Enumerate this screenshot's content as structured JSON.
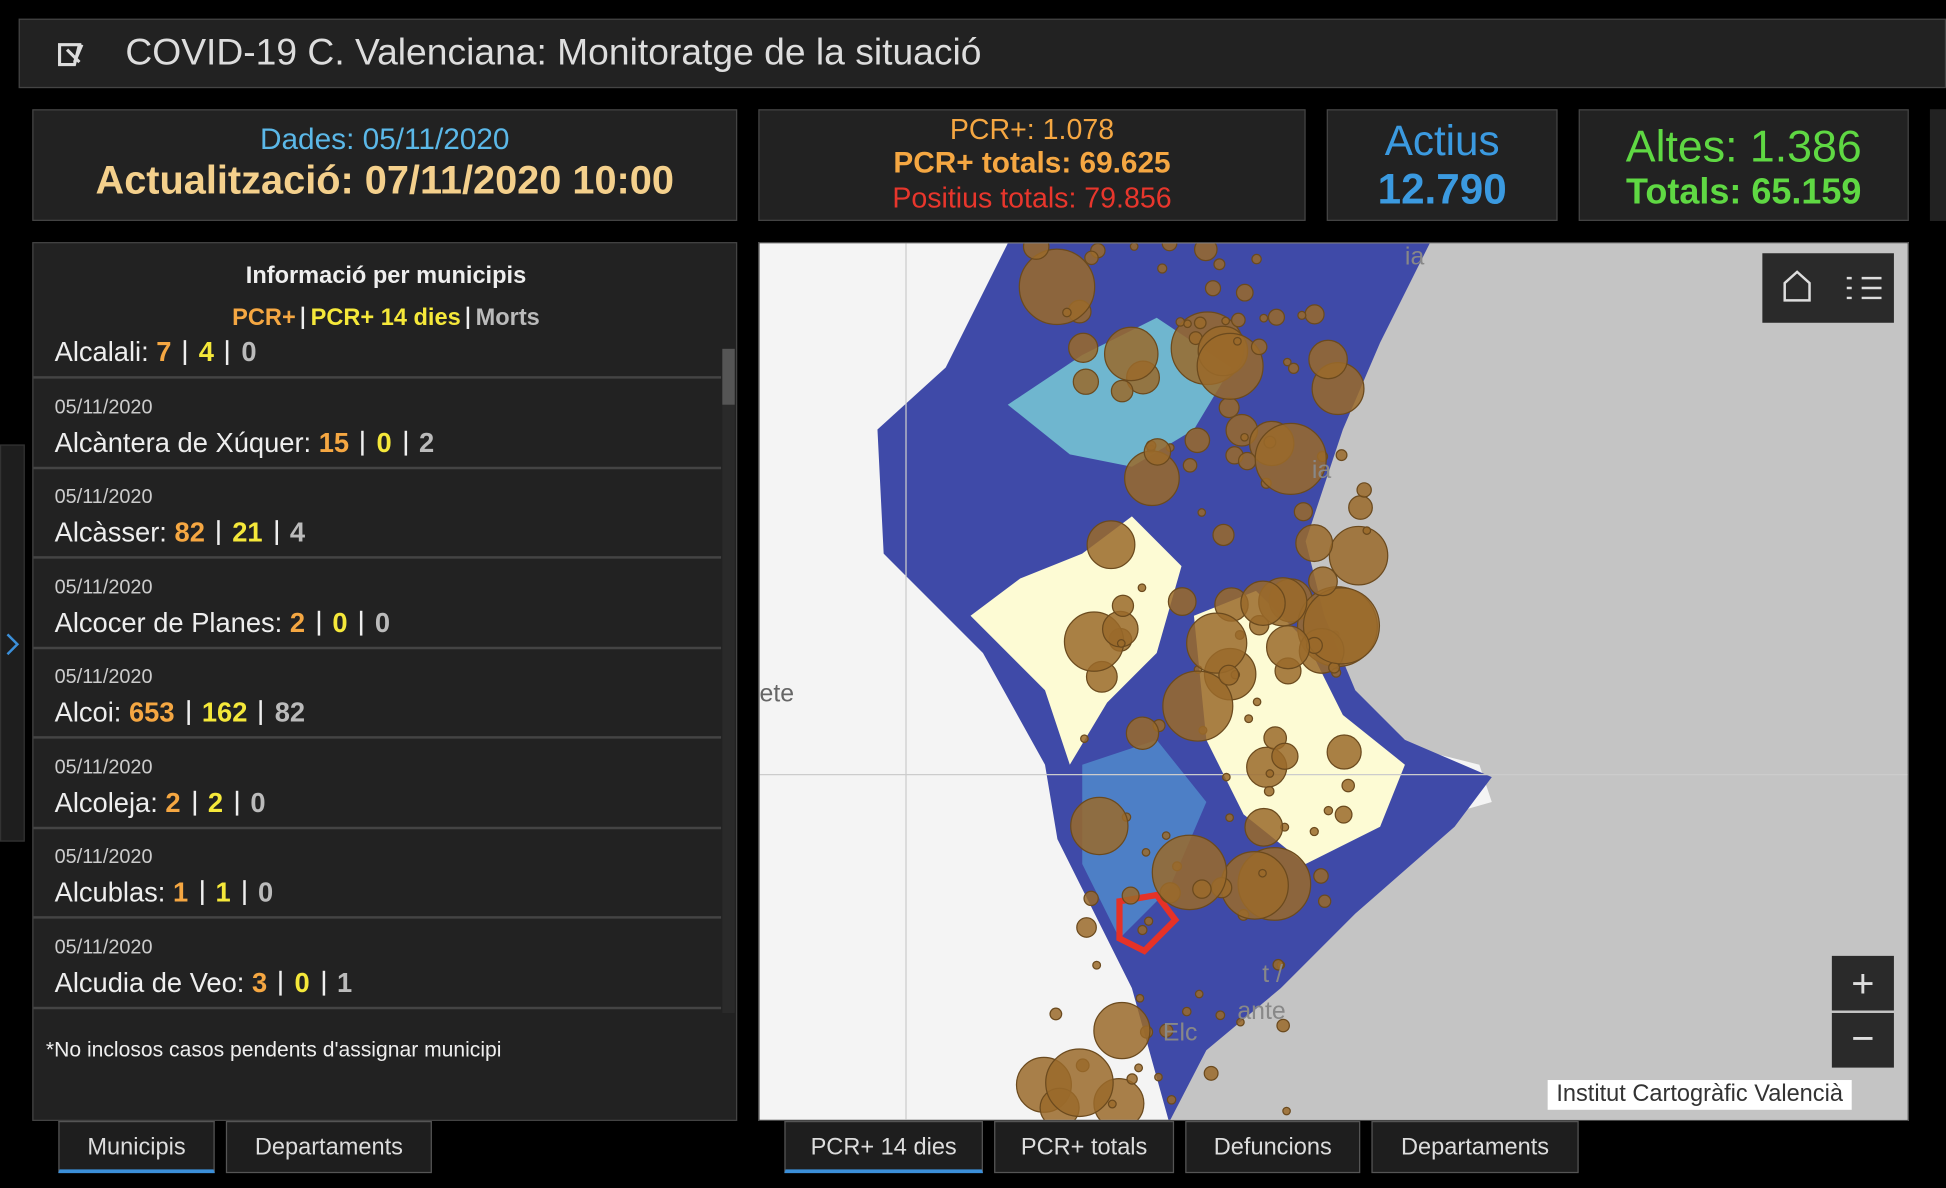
{
  "header": {
    "title": "COVID-19 C. Valenciana: Monitoratge de la situació"
  },
  "cards": {
    "data_date": "Dades: 05/11/2020",
    "update": "Actualització: 07/11/2020 10:00",
    "pcr": "PCR+: 1.078",
    "pcr_total": "PCR+ totals: 69.625",
    "positive_total": "Positius totals: 79.856",
    "active_label": "Actius",
    "active_value": "12.790",
    "discharges": "Altes: 1.386",
    "discharges_total": "Totals: 65.159"
  },
  "panel": {
    "title": "Informació per municipis",
    "legend": [
      "PCR+",
      "PCR+ 14 dies",
      "Morts"
    ],
    "items": [
      {
        "date": null,
        "name": "Alcalali:",
        "pcr": "7",
        "pcr14": "4",
        "deaths": "0"
      },
      {
        "date": "05/11/2020",
        "name": "Alcàntera de Xúquer:",
        "pcr": "15",
        "pcr14": "0",
        "deaths": "2"
      },
      {
        "date": "05/11/2020",
        "name": "Alcàsser:",
        "pcr": "82",
        "pcr14": "21",
        "deaths": "4"
      },
      {
        "date": "05/11/2020",
        "name": "Alcocer de Planes:",
        "pcr": "2",
        "pcr14": "0",
        "deaths": "0"
      },
      {
        "date": "05/11/2020",
        "name": "Alcoi:",
        "pcr": "653",
        "pcr14": "162",
        "deaths": "82"
      },
      {
        "date": "05/11/2020",
        "name": "Alcoleja:",
        "pcr": "2",
        "pcr14": "2",
        "deaths": "0"
      },
      {
        "date": "05/11/2020",
        "name": "Alcublas:",
        "pcr": "1",
        "pcr14": "1",
        "deaths": "0"
      },
      {
        "date": "05/11/2020",
        "name": "Alcudia de Veo:",
        "pcr": "3",
        "pcr14": "0",
        "deaths": "1"
      }
    ],
    "footnote": "*No inclosos casos pendents d'assignar municipi"
  },
  "left_tabs": [
    "Municipis",
    "Departaments"
  ],
  "map": {
    "attribution": "Institut Cartogràfic Valencià",
    "zoom_in": "+",
    "zoom_out": "−",
    "labels": [
      "ia",
      "ia",
      "ete",
      "t /",
      "ante",
      "Elc"
    ]
  },
  "map_tabs": [
    "PCR+ 14 dies",
    "PCR+ totals",
    "Defuncions",
    "Departaments"
  ]
}
